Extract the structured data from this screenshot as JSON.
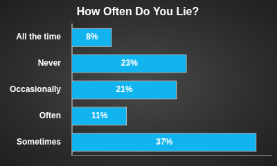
{
  "chart_data": {
    "type": "bar",
    "title": "How Often Do You Lie?",
    "orientation": "horizontal",
    "categories": [
      "All the time",
      "Never",
      "Occasionally",
      "Often",
      "Sometimes"
    ],
    "values": [
      8,
      23,
      21,
      11,
      37
    ],
    "value_labels": [
      "8%",
      "23%",
      "21%",
      "11%",
      "37%"
    ],
    "color": "#12b4f0",
    "xlim": [
      0,
      40
    ],
    "grid": false,
    "data_labels": true,
    "tick_labels": "y"
  }
}
